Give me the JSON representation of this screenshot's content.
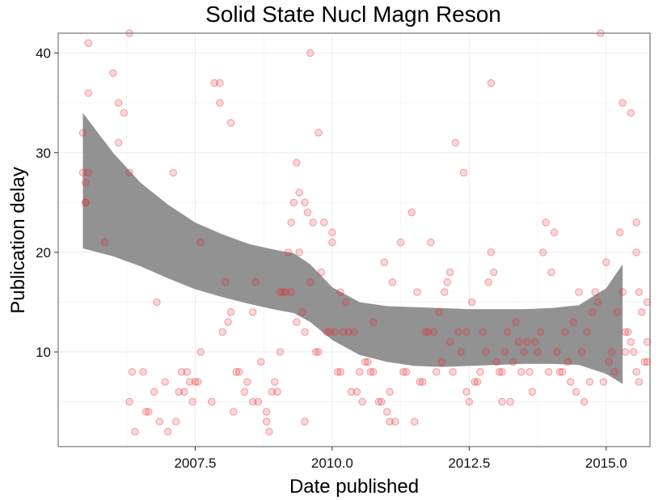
{
  "chart_data": {
    "type": "scatter",
    "title": "Solid State Nucl Magn Reson",
    "xlabel": "Date published",
    "ylabel": "Publication delay",
    "xlim": [
      2005.0,
      2015.8
    ],
    "ylim": [
      0.5,
      42.0
    ],
    "x_ticks": [
      2007.5,
      2010.0,
      2012.5,
      2015.0
    ],
    "x_tick_labels": [
      "2007.5",
      "2010.0",
      "2012.5",
      "2015.0"
    ],
    "y_ticks": [
      10,
      20,
      30,
      40
    ],
    "y_tick_labels": [
      "10",
      "20",
      "30",
      "40"
    ],
    "grid": true,
    "legend": "none",
    "colors": {
      "points": "#e8262a",
      "smooth_band": "#8c8c8c",
      "panel_border": "#7f7f7f"
    },
    "smooth_band": {
      "x": [
        2005.45,
        2006.0,
        2006.5,
        2007.0,
        2007.5,
        2008.0,
        2008.5,
        2009.0,
        2009.3,
        2009.6,
        2010.0,
        2010.5,
        2011.0,
        2011.5,
        2012.0,
        2012.5,
        2013.0,
        2013.5,
        2014.0,
        2014.5,
        2015.0,
        2015.3
      ],
      "lower": [
        20.4,
        19.6,
        18.6,
        17.4,
        16.3,
        15.5,
        14.8,
        14.2,
        13.9,
        13.0,
        11.2,
        9.7,
        9.0,
        8.6,
        8.5,
        8.6,
        8.7,
        8.8,
        8.8,
        8.7,
        7.8,
        6.8
      ],
      "upper": [
        34.0,
        30.0,
        27.0,
        24.8,
        23.0,
        21.8,
        20.8,
        20.2,
        19.9,
        18.8,
        16.5,
        15.0,
        14.6,
        14.5,
        14.4,
        14.3,
        14.3,
        14.3,
        14.4,
        14.7,
        16.4,
        18.8
      ]
    },
    "points": [
      [
        2005.45,
        32
      ],
      [
        2005.45,
        28
      ],
      [
        2005.5,
        27
      ],
      [
        2005.5,
        25
      ],
      [
        2005.55,
        41
      ],
      [
        2005.55,
        36
      ],
      [
        2005.55,
        28
      ],
      [
        2005.5,
        25
      ],
      [
        2005.85,
        21
      ],
      [
        2006.0,
        38
      ],
      [
        2006.1,
        35
      ],
      [
        2006.1,
        31
      ],
      [
        2006.2,
        34
      ],
      [
        2006.3,
        42
      ],
      [
        2006.3,
        28
      ],
      [
        2006.3,
        5
      ],
      [
        2006.35,
        8
      ],
      [
        2006.4,
        2
      ],
      [
        2006.55,
        8
      ],
      [
        2006.6,
        4
      ],
      [
        2006.65,
        4
      ],
      [
        2006.75,
        6
      ],
      [
        2006.8,
        15
      ],
      [
        2006.85,
        3
      ],
      [
        2006.95,
        7
      ],
      [
        2007.0,
        2
      ],
      [
        2007.1,
        28
      ],
      [
        2007.15,
        3
      ],
      [
        2007.2,
        6
      ],
      [
        2007.25,
        8
      ],
      [
        2007.3,
        6
      ],
      [
        2007.35,
        8
      ],
      [
        2007.4,
        7
      ],
      [
        2007.45,
        5
      ],
      [
        2007.5,
        7
      ],
      [
        2007.55,
        7
      ],
      [
        2007.6,
        10
      ],
      [
        2007.6,
        21
      ],
      [
        2007.8,
        5
      ],
      [
        2007.85,
        37
      ],
      [
        2007.95,
        37
      ],
      [
        2007.95,
        35
      ],
      [
        2008.0,
        12
      ],
      [
        2008.05,
        17
      ],
      [
        2008.1,
        13
      ],
      [
        2008.15,
        14
      ],
      [
        2008.15,
        33
      ],
      [
        2008.2,
        4
      ],
      [
        2008.25,
        8
      ],
      [
        2008.3,
        8
      ],
      [
        2008.4,
        6
      ],
      [
        2008.45,
        7
      ],
      [
        2008.55,
        5
      ],
      [
        2008.55,
        14
      ],
      [
        2008.6,
        17
      ],
      [
        2008.65,
        5
      ],
      [
        2008.7,
        9
      ],
      [
        2008.8,
        4
      ],
      [
        2008.8,
        3
      ],
      [
        2008.85,
        2
      ],
      [
        2008.9,
        6
      ],
      [
        2008.95,
        7
      ],
      [
        2009.0,
        6
      ],
      [
        2009.05,
        10
      ],
      [
        2009.05,
        16
      ],
      [
        2009.1,
        16
      ],
      [
        2009.15,
        16
      ],
      [
        2009.2,
        20
      ],
      [
        2009.25,
        16
      ],
      [
        2009.25,
        23
      ],
      [
        2009.3,
        25
      ],
      [
        2009.35,
        29
      ],
      [
        2009.35,
        13
      ],
      [
        2009.4,
        20
      ],
      [
        2009.4,
        26
      ],
      [
        2009.45,
        14
      ],
      [
        2009.5,
        12
      ],
      [
        2009.5,
        25
      ],
      [
        2009.5,
        3
      ],
      [
        2009.55,
        24
      ],
      [
        2009.6,
        40
      ],
      [
        2009.6,
        17
      ],
      [
        2009.65,
        23
      ],
      [
        2009.7,
        10
      ],
      [
        2009.75,
        10
      ],
      [
        2009.75,
        32
      ],
      [
        2009.8,
        18
      ],
      [
        2009.85,
        23
      ],
      [
        2009.9,
        12
      ],
      [
        2009.95,
        12
      ],
      [
        2010.0,
        21
      ],
      [
        2010.0,
        22
      ],
      [
        2010.05,
        12
      ],
      [
        2010.1,
        8
      ],
      [
        2010.15,
        8
      ],
      [
        2010.15,
        16
      ],
      [
        2010.2,
        12
      ],
      [
        2010.25,
        15
      ],
      [
        2010.3,
        12
      ],
      [
        2010.35,
        6
      ],
      [
        2010.4,
        12
      ],
      [
        2010.45,
        6
      ],
      [
        2010.5,
        8
      ],
      [
        2010.55,
        5
      ],
      [
        2010.6,
        9
      ],
      [
        2010.65,
        9
      ],
      [
        2010.7,
        8
      ],
      [
        2010.75,
        13
      ],
      [
        2010.75,
        8
      ],
      [
        2010.85,
        5
      ],
      [
        2010.9,
        5
      ],
      [
        2010.95,
        19
      ],
      [
        2011.0,
        4
      ],
      [
        2011.05,
        6
      ],
      [
        2011.05,
        3
      ],
      [
        2011.1,
        17
      ],
      [
        2011.15,
        3
      ],
      [
        2011.25,
        21
      ],
      [
        2011.3,
        8
      ],
      [
        2011.35,
        8
      ],
      [
        2011.45,
        24
      ],
      [
        2011.5,
        3
      ],
      [
        2011.55,
        16
      ],
      [
        2011.6,
        7
      ],
      [
        2011.65,
        7
      ],
      [
        2011.7,
        12
      ],
      [
        2011.75,
        12
      ],
      [
        2011.8,
        21
      ],
      [
        2011.85,
        12
      ],
      [
        2011.9,
        8
      ],
      [
        2011.95,
        14
      ],
      [
        2012.0,
        9
      ],
      [
        2012.05,
        16
      ],
      [
        2012.1,
        17
      ],
      [
        2012.15,
        18
      ],
      [
        2012.15,
        11
      ],
      [
        2012.2,
        8
      ],
      [
        2012.25,
        31
      ],
      [
        2012.3,
        12
      ],
      [
        2012.35,
        10
      ],
      [
        2012.4,
        28
      ],
      [
        2012.45,
        12
      ],
      [
        2012.45,
        6
      ],
      [
        2012.5,
        5
      ],
      [
        2012.55,
        15
      ],
      [
        2012.6,
        7
      ],
      [
        2012.65,
        7
      ],
      [
        2012.7,
        8
      ],
      [
        2012.75,
        12
      ],
      [
        2012.8,
        10
      ],
      [
        2012.85,
        17
      ],
      [
        2012.9,
        37
      ],
      [
        2012.9,
        20
      ],
      [
        2012.95,
        18
      ],
      [
        2013.0,
        9
      ],
      [
        2013.05,
        8
      ],
      [
        2013.1,
        8
      ],
      [
        2013.1,
        5
      ],
      [
        2013.15,
        10
      ],
      [
        2013.2,
        12
      ],
      [
        2013.25,
        5
      ],
      [
        2013.3,
        9
      ],
      [
        2013.35,
        13
      ],
      [
        2013.4,
        11
      ],
      [
        2013.45,
        8
      ],
      [
        2013.5,
        10
      ],
      [
        2013.55,
        11
      ],
      [
        2013.6,
        8
      ],
      [
        2013.65,
        6
      ],
      [
        2013.7,
        11
      ],
      [
        2013.75,
        10
      ],
      [
        2013.8,
        12
      ],
      [
        2013.85,
        20
      ],
      [
        2013.9,
        23
      ],
      [
        2013.95,
        8
      ],
      [
        2014.0,
        18
      ],
      [
        2014.05,
        22
      ],
      [
        2014.1,
        10
      ],
      [
        2014.15,
        8
      ],
      [
        2014.2,
        8
      ],
      [
        2014.25,
        12
      ],
      [
        2014.3,
        9
      ],
      [
        2014.35,
        7
      ],
      [
        2014.4,
        13
      ],
      [
        2014.45,
        6
      ],
      [
        2014.5,
        16
      ],
      [
        2014.55,
        10
      ],
      [
        2014.6,
        5
      ],
      [
        2014.65,
        12
      ],
      [
        2014.7,
        7
      ],
      [
        2014.75,
        14
      ],
      [
        2014.8,
        16
      ],
      [
        2014.85,
        15
      ],
      [
        2014.9,
        42
      ],
      [
        2014.95,
        7
      ],
      [
        2015.0,
        19
      ],
      [
        2015.05,
        9
      ],
      [
        2015.1,
        10
      ],
      [
        2015.15,
        8
      ],
      [
        2015.2,
        14
      ],
      [
        2015.25,
        22
      ],
      [
        2015.3,
        35
      ],
      [
        2015.3,
        16
      ],
      [
        2015.35,
        10
      ],
      [
        2015.35,
        12
      ],
      [
        2015.4,
        12
      ],
      [
        2015.45,
        34
      ],
      [
        2015.45,
        11
      ],
      [
        2015.5,
        10
      ],
      [
        2015.55,
        8
      ],
      [
        2015.55,
        23
      ],
      [
        2015.55,
        20
      ],
      [
        2015.6,
        7
      ],
      [
        2015.6,
        16
      ],
      [
        2015.65,
        14
      ],
      [
        2015.7,
        9
      ],
      [
        2015.75,
        15
      ],
      [
        2015.75,
        11
      ],
      [
        2015.75,
        9
      ]
    ]
  }
}
